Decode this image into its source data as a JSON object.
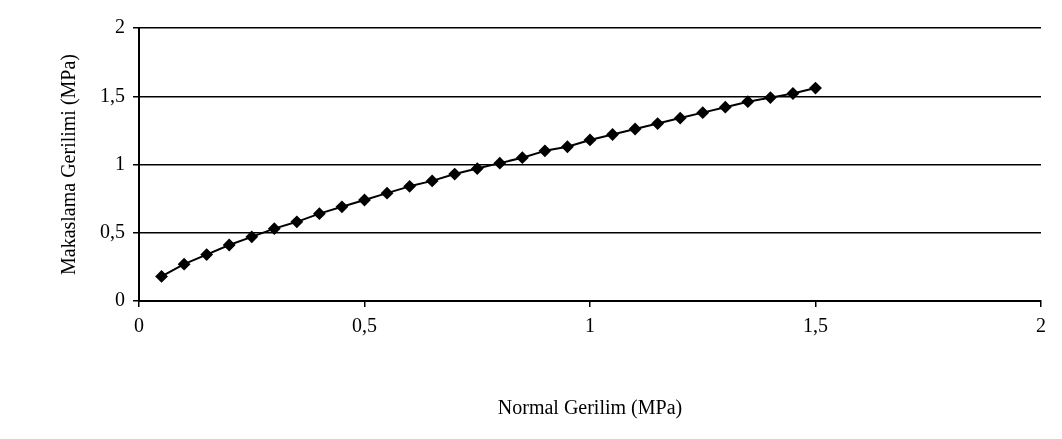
{
  "chart_data": {
    "type": "line",
    "xlabel": "Normal Gerilim (MPa)",
    "ylabel": "Makaslama Gerilimi (MPa)",
    "x": [
      0.05,
      0.1,
      0.15,
      0.2,
      0.25,
      0.3,
      0.35,
      0.4,
      0.45,
      0.5,
      0.55,
      0.6,
      0.65,
      0.7,
      0.75,
      0.8,
      0.85,
      0.9,
      0.95,
      1.0,
      1.05,
      1.1,
      1.15,
      1.2,
      1.25,
      1.3,
      1.35,
      1.4,
      1.45,
      1.5
    ],
    "series": [
      {
        "color": "#000000",
        "values": [
          0.18,
          0.27,
          0.34,
          0.41,
          0.47,
          0.53,
          0.58,
          0.64,
          0.69,
          0.74,
          0.79,
          0.84,
          0.88,
          0.93,
          0.97,
          1.01,
          1.05,
          1.1,
          1.13,
          1.18,
          1.22,
          1.26,
          1.3,
          1.34,
          1.38,
          1.42,
          1.46,
          1.49,
          1.52,
          1.56
        ]
      }
    ],
    "xlim": [
      0,
      2
    ],
    "xticks": [
      0,
      {
        "value": 0.5,
        "label": "0,5"
      },
      1,
      {
        "value": 1.5,
        "label": "1,5"
      },
      2
    ],
    "ylim": [
      0,
      2
    ],
    "yticks": [
      0,
      {
        "value": 0.5,
        "label": "0,5"
      },
      1,
      {
        "value": 1.5,
        "label": "1,5"
      },
      2
    ],
    "grid": "y",
    "legend": false,
    "marker": "diamond",
    "line_style": "solid"
  }
}
